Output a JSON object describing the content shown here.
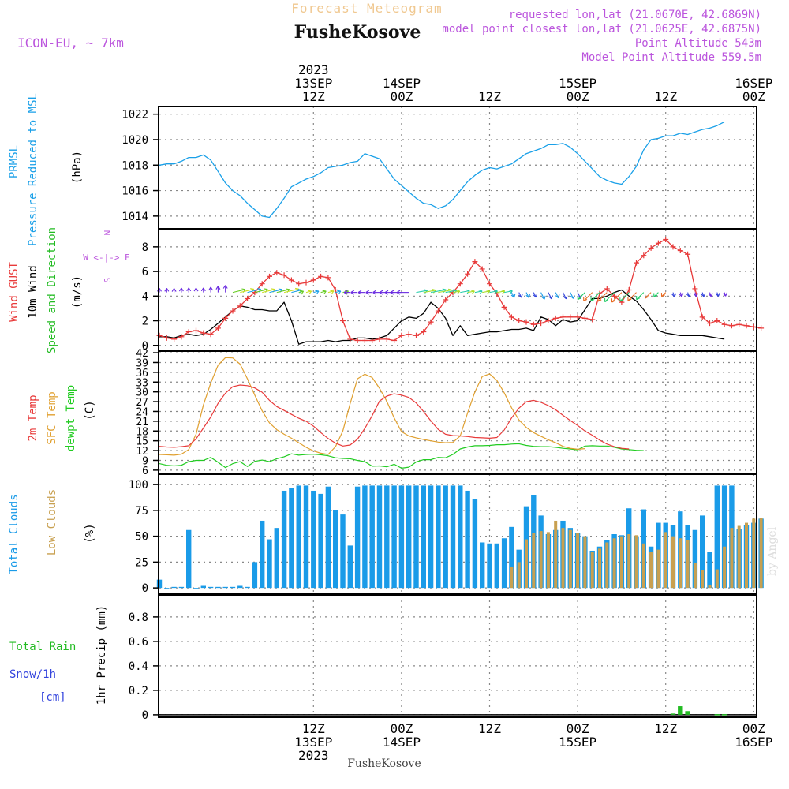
{
  "header": {
    "title": "Forecast Meteogram",
    "location": "FusheKosove",
    "model": "ICON-EU, ~ 7km",
    "requested": "requested lon,lat (21.0670E, 42.6869N)",
    "closest": "model point closest lon,lat (21.0625E, 42.6875N)",
    "altitude": "Point Altitude 543m",
    "model_altitude": "Model Point Altitude 559.5m",
    "footer": "FusheKosove",
    "credit": "by Angel"
  },
  "time_axis": {
    "top": [
      {
        "t": 21,
        "lines": [
          "2023",
          "13SEP",
          "12Z"
        ]
      },
      {
        "t": 33,
        "lines": [
          "14SEP",
          "00Z"
        ]
      },
      {
        "t": 45,
        "lines": [
          "12Z"
        ]
      },
      {
        "t": 57,
        "lines": [
          "15SEP",
          "00Z"
        ]
      },
      {
        "t": 69,
        "lines": [
          "12Z"
        ]
      },
      {
        "t": 81,
        "lines": [
          "16SEP",
          "00Z"
        ]
      }
    ],
    "bottom": [
      {
        "t": 21,
        "lines": [
          "12Z",
          "13SEP",
          "2023"
        ]
      },
      {
        "t": 33,
        "lines": [
          "00Z",
          "14SEP"
        ]
      },
      {
        "t": 45,
        "lines": [
          "12Z"
        ]
      },
      {
        "t": 57,
        "lines": [
          "00Z",
          "15SEP"
        ]
      },
      {
        "t": 69,
        "lines": [
          "12Z"
        ]
      },
      {
        "t": 81,
        "lines": [
          "00Z",
          "16SEP"
        ]
      }
    ]
  },
  "colors": {
    "pressure": "#1aa0e8",
    "gust": "#e83a3a",
    "wind": "#000000",
    "green": "#22bb22",
    "sfc": "#e0a030",
    "dew": "#22cc22",
    "cloud_total": "#1a9be8",
    "cloud_low": "#c8a050",
    "purple": "#bb55dd",
    "snow": "#3344dd"
  },
  "chart_data": [
    {
      "type": "line",
      "title": "PRMSL",
      "ylabel_lines": [
        "PRMSL",
        "Pressure Reduced to MSL"
      ],
      "unit": "(hPa)",
      "ylim": [
        1013,
        1022.6
      ],
      "yticks": [
        1014,
        1016,
        1018,
        1020,
        1022
      ],
      "series": [
        {
          "name": "PRMSL",
          "values": [
            1018.0,
            1018.1,
            1018.1,
            1018.3,
            1018.6,
            1018.6,
            1018.8,
            1018.4,
            1017.5,
            1016.6,
            1016.0,
            1015.6,
            1015.0,
            1014.5,
            1014.0,
            1013.9,
            1014.6,
            1015.4,
            1016.3,
            1016.6,
            1016.9,
            1017.1,
            1017.4,
            1017.8,
            1017.9,
            1018.0,
            1018.2,
            1018.3,
            1018.9,
            1018.7,
            1018.5,
            1017.7,
            1016.9,
            1016.4,
            1015.9,
            1015.4,
            1015.0,
            1014.9,
            1014.6,
            1014.8,
            1015.3,
            1016.0,
            1016.7,
            1017.2,
            1017.6,
            1017.8,
            1017.7,
            1017.9,
            1018.1,
            1018.5,
            1018.9,
            1019.1,
            1019.3,
            1019.6,
            1019.6,
            1019.7,
            1019.4,
            1018.9,
            1018.3,
            1017.7,
            1017.1,
            1016.8,
            1016.6,
            1016.5,
            1017.1,
            1017.9,
            1019.2,
            1020.0,
            1020.1,
            1020.3,
            1020.3,
            1020.5,
            1020.4,
            1020.6,
            1020.8,
            1020.9,
            1021.1,
            1021.4
          ]
        }
      ]
    },
    {
      "type": "line",
      "title": "Wind",
      "ylabel_lines": [
        "Wind GUST",
        "10m Wind",
        "Speed and Direction"
      ],
      "unit": "(m/s)",
      "compass": [
        "N",
        "W <-|-> E",
        "S"
      ],
      "ylim": [
        -0.4,
        9.4
      ],
      "yticks": [
        0,
        2,
        4,
        6,
        8
      ],
      "series": [
        {
          "name": "Wind GUST",
          "values": [
            0.8,
            0.6,
            0.5,
            0.7,
            1.1,
            1.2,
            1.0,
            0.9,
            1.4,
            2.2,
            2.8,
            3.2,
            3.8,
            4.3,
            5.0,
            5.6,
            5.9,
            5.7,
            5.3,
            5.0,
            5.1,
            5.3,
            5.6,
            5.5,
            4.5,
            2.0,
            0.5,
            0.4,
            0.4,
            0.4,
            0.5,
            0.5,
            0.4,
            0.8,
            0.9,
            0.8,
            1.1,
            1.9,
            2.8,
            3.7,
            4.3,
            5.0,
            5.8,
            6.8,
            6.2,
            5.0,
            4.2,
            3.1,
            2.3,
            2.0,
            1.9,
            1.7,
            1.8,
            2.0,
            2.2,
            2.3,
            2.3,
            2.3,
            2.2,
            2.1,
            4.2,
            4.6,
            4.0,
            3.5,
            4.5,
            6.7,
            7.3,
            7.9,
            8.3,
            8.6,
            8.0,
            7.7,
            7.4,
            4.6,
            2.3,
            1.8,
            2.0,
            1.7,
            1.6,
            1.7,
            1.6,
            1.5,
            1.4
          ]
        },
        {
          "name": "10m Wind",
          "values": [
            0.7,
            0.7,
            0.6,
            0.8,
            0.9,
            0.8,
            0.9,
            1.3,
            1.8,
            2.3,
            2.8,
            3.2,
            3.1,
            2.9,
            2.9,
            2.8,
            2.8,
            3.5,
            2.0,
            0.1,
            0.3,
            0.3,
            0.3,
            0.4,
            0.3,
            0.4,
            0.4,
            0.6,
            0.6,
            0.5,
            0.6,
            0.8,
            1.4,
            2.0,
            2.3,
            2.2,
            2.6,
            3.5,
            3.0,
            2.2,
            0.8,
            1.6,
            0.8,
            0.9,
            1.0,
            1.1,
            1.1,
            1.2,
            1.3,
            1.3,
            1.4,
            1.2,
            2.3,
            2.1,
            1.6,
            2.1,
            1.9,
            2.0,
            2.9,
            3.8,
            3.8,
            4.0,
            4.3,
            4.5,
            4.0,
            3.6,
            2.9,
            2.1,
            1.2,
            1.0,
            0.9,
            0.8,
            0.8,
            0.8,
            0.8,
            0.7,
            0.6,
            0.5
          ]
        }
      ]
    },
    {
      "type": "line",
      "title": "Temperature",
      "ylabel_lines": [
        "2m Temp",
        "SFC Temp",
        "dewpt Temp"
      ],
      "unit": "(C)",
      "ylim": [
        5,
        42.5
      ],
      "yticks": [
        6,
        9,
        12,
        15,
        18,
        21,
        24,
        27,
        30,
        33,
        36,
        39,
        42
      ],
      "series": [
        {
          "name": "2m Temp",
          "values": [
            13.3,
            13.1,
            13.0,
            13.2,
            13.5,
            15.6,
            18.9,
            22.3,
            26.5,
            29.6,
            31.6,
            32.1,
            31.9,
            31.2,
            29.9,
            27.4,
            25.5,
            24.3,
            23.1,
            21.9,
            21.0,
            19.5,
            17.5,
            15.7,
            14.3,
            13.4,
            13.7,
            15.5,
            18.8,
            22.7,
            27.2,
            28.7,
            29.4,
            29.0,
            28.3,
            26.6,
            24.0,
            21.1,
            18.5,
            17.0,
            16.6,
            16.5,
            16.3,
            16.0,
            15.9,
            15.8,
            16.0,
            18.3,
            22.0,
            25.0,
            27.0,
            27.4,
            26.8,
            25.8,
            24.5,
            22.8,
            21.2,
            19.7,
            18.0,
            16.7,
            15.2,
            14.0,
            13.2,
            12.7,
            12.5
          ]
        },
        {
          "name": "SFC Temp",
          "values": [
            10.8,
            10.7,
            10.6,
            10.9,
            12.3,
            17.0,
            26.0,
            32.7,
            38.2,
            40.5,
            40.4,
            38.5,
            34.0,
            29.0,
            24.2,
            20.5,
            18.4,
            17.0,
            15.8,
            14.4,
            13.0,
            11.9,
            11.2,
            10.8,
            13.2,
            18.0,
            26.4,
            34.0,
            35.4,
            34.4,
            31.1,
            27.1,
            22.0,
            17.8,
            16.5,
            15.9,
            15.4,
            15.0,
            14.6,
            14.4,
            14.5,
            16.5,
            23.5,
            30.0,
            34.7,
            35.5,
            33.5,
            29.7,
            25.1,
            21.4,
            19.1,
            17.5,
            16.4,
            15.3,
            14.4,
            13.3,
            12.7,
            12.4,
            12.6
          ]
        },
        {
          "name": "dewpt Temp",
          "values": [
            8.0,
            7.5,
            7.3,
            7.5,
            8.6,
            9.0,
            9.0,
            9.9,
            8.4,
            6.8,
            8.0,
            8.6,
            7.1,
            8.7,
            9.1,
            8.6,
            9.5,
            10.1,
            11.0,
            10.6,
            10.8,
            10.9,
            10.7,
            10.4,
            9.8,
            9.6,
            9.5,
            9.0,
            8.6,
            7.2,
            7.3,
            7.0,
            7.8,
            6.6,
            6.9,
            8.5,
            9.2,
            9.2,
            9.9,
            9.8,
            10.8,
            12.5,
            13.1,
            13.5,
            13.5,
            13.6,
            13.8,
            13.8,
            14.0,
            14.1,
            13.6,
            13.3,
            13.2,
            13.2,
            13.0,
            12.7,
            12.5,
            12.2,
            13.4,
            13.5,
            13.4,
            13.4,
            13.0,
            12.5,
            12.3,
            12.1,
            12.0
          ]
        }
      ]
    },
    {
      "type": "bar",
      "title": "Clouds",
      "ylabel_lines": [
        "Total Clouds",
        "Low Clouds"
      ],
      "unit": "(%)",
      "ylim": [
        -6,
        110
      ],
      "yticks": [
        0,
        25,
        50,
        75,
        100
      ],
      "series": [
        {
          "name": "Total Clouds",
          "values": [
            8,
            0,
            1,
            1,
            56,
            0,
            2,
            1,
            1,
            1,
            1,
            2,
            1,
            25,
            65,
            47,
            58,
            94,
            97,
            99,
            99,
            94,
            91,
            98,
            75,
            71,
            41,
            98,
            99,
            99,
            99,
            99,
            99,
            99,
            99,
            99,
            99,
            99,
            99,
            99,
            99,
            99,
            94,
            86,
            44,
            43,
            43,
            48,
            59,
            37,
            79,
            90,
            70,
            52,
            56,
            65,
            58,
            53,
            50,
            36,
            40,
            46,
            52,
            51,
            77,
            50,
            76,
            40,
            63,
            63,
            61,
            74,
            61,
            56,
            70,
            35,
            99,
            99,
            99,
            57,
            61,
            63,
            67
          ]
        },
        {
          "name": "Low Clouds",
          "values": [
            0,
            0,
            0,
            0,
            0,
            0,
            0,
            0,
            0,
            0,
            0,
            0,
            0,
            0,
            0,
            0,
            0,
            0,
            0,
            0,
            0,
            0,
            0,
            0,
            0,
            0,
            0,
            0,
            0,
            0,
            0,
            0,
            0,
            0,
            0,
            0,
            0,
            0,
            0,
            0,
            0,
            0,
            0,
            0,
            0,
            0,
            0,
            0,
            20,
            25,
            47,
            53,
            55,
            54,
            65,
            58,
            56,
            53,
            50,
            35,
            38,
            44,
            48,
            50,
            52,
            51,
            43,
            35,
            37,
            54,
            50,
            48,
            46,
            24,
            17,
            3,
            18,
            40,
            58,
            60,
            63,
            67,
            68
          ]
        }
      ]
    },
    {
      "type": "bar",
      "title": "Precipitation",
      "ylabel_lines": [
        "1hr Precip (mm)"
      ],
      "legend": [
        "Total Rain",
        "Snow/1h",
        "[cm]"
      ],
      "ylim": [
        -0.02,
        0.98
      ],
      "yticks": [
        0,
        0.2,
        0.4,
        0.6,
        0.8
      ],
      "ytick_labels": [
        "0",
        "0.2",
        "0.4",
        "0.6",
        "0.8"
      ],
      "series": [
        {
          "name": "Total Rain",
          "bars": [
            {
              "t": 70,
              "v": 0.01
            },
            {
              "t": 71,
              "v": 0.07
            },
            {
              "t": 72,
              "v": 0.03
            },
            {
              "t": 76,
              "v": 0.005
            },
            {
              "t": 77,
              "v": 0.005
            }
          ]
        }
      ]
    }
  ]
}
